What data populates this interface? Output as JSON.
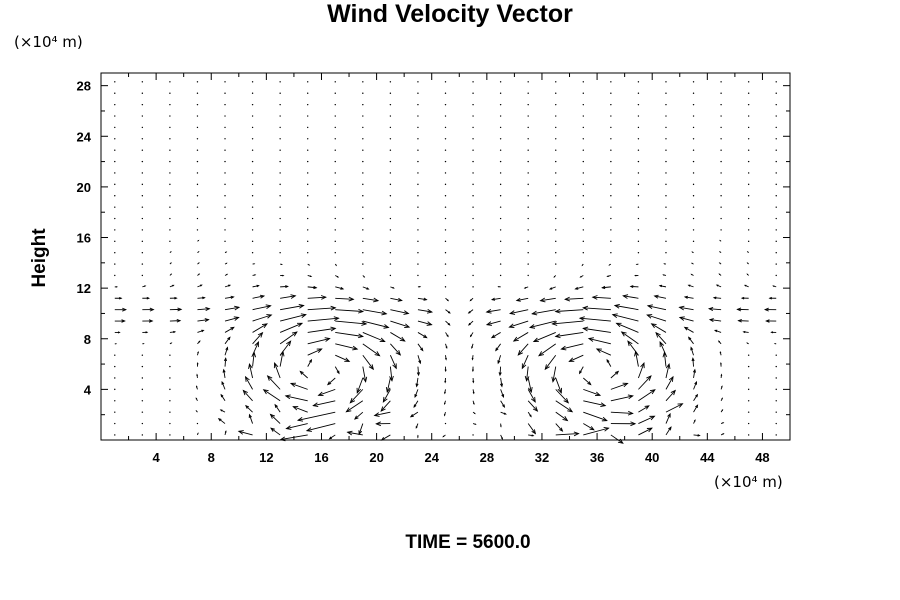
{
  "chart_data": {
    "type": "quiver",
    "title": "Wind Velocity Vector",
    "ylabel": "Height",
    "xlabel": "",
    "x_unit": "(×10⁴ m)",
    "y_unit": "(×10⁴ m)",
    "xlim": [
      0,
      50
    ],
    "ylim": [
      0,
      29
    ],
    "x_ticks": [
      4,
      8,
      12,
      16,
      20,
      24,
      28,
      32,
      36,
      40,
      44,
      48
    ],
    "y_ticks": [
      4,
      8,
      12,
      16,
      20,
      24,
      28
    ],
    "grid": false,
    "annotation": "TIME = 5600.0",
    "field": {
      "x_start": 1,
      "x_step": 2,
      "y_start": 0.4,
      "y_step": 0.9,
      "cells_x": 25,
      "cells_y": 32,
      "description": "two counter-rotating convective cells centered near x=16 and x=36, strong low-level flow below height 12, downdraft along x=26"
    }
  }
}
